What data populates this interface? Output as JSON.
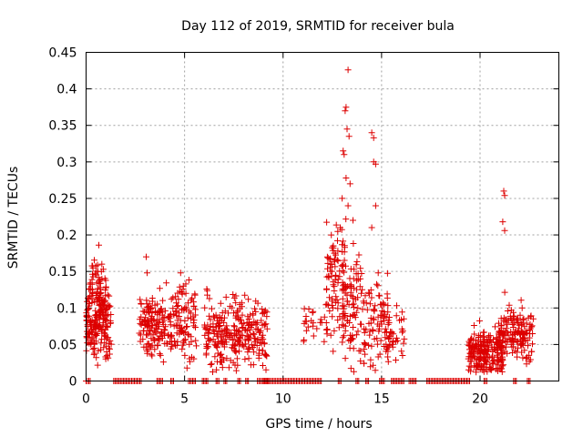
{
  "chart_data": {
    "type": "scatter",
    "title": "Day 112 of 2019, SRMTID for receiver bula",
    "xlabel": "GPS time / hours",
    "ylabel": "SRMTID / TECUs",
    "xlim": [
      0,
      24
    ],
    "ylim": [
      0,
      0.45
    ],
    "xticks": [
      0,
      5,
      10,
      15,
      20
    ],
    "xtick_labels": [
      "0",
      "5",
      "10",
      "15",
      "20"
    ],
    "yticks": [
      0,
      0.05,
      0.1,
      0.15,
      0.2,
      0.25,
      0.3,
      0.35,
      0.4,
      0.45
    ],
    "ytick_labels": [
      "0",
      "0.05",
      "0.1",
      "0.15",
      "0.2",
      "0.25",
      "0.3",
      "0.35",
      "0.4",
      "0.45"
    ],
    "grid": true,
    "marker": "+",
    "marker_color": "#dd0000",
    "clusters": [
      {
        "x": [
          0.0,
          1.3
        ],
        "y_center": 0.085,
        "y_spread": 0.04,
        "count": 200
      },
      {
        "x": [
          0.3,
          1.0
        ],
        "y_center": 0.12,
        "y_spread": 0.04,
        "count": 40
      },
      {
        "x": [
          2.7,
          4.6
        ],
        "y_center": 0.075,
        "y_spread": 0.035,
        "count": 170
      },
      {
        "x": [
          4.6,
          5.6
        ],
        "y_center": 0.085,
        "y_spread": 0.04,
        "count": 80
      },
      {
        "x": [
          6.0,
          9.2
        ],
        "y_center": 0.065,
        "y_spread": 0.035,
        "count": 280
      },
      {
        "x": [
          11.0,
          12.3
        ],
        "y_center": 0.075,
        "y_spread": 0.02,
        "count": 25
      },
      {
        "x": [
          12.2,
          13.2
        ],
        "y_center": 0.13,
        "y_spread": 0.06,
        "count": 90
      },
      {
        "x": [
          13.0,
          14.0
        ],
        "y_center": 0.1,
        "y_spread": 0.06,
        "count": 90
      },
      {
        "x": [
          14.0,
          15.4
        ],
        "y_center": 0.08,
        "y_spread": 0.05,
        "count": 90
      },
      {
        "x": [
          15.2,
          16.2
        ],
        "y_center": 0.065,
        "y_spread": 0.03,
        "count": 40
      },
      {
        "x": [
          19.4,
          21.2
        ],
        "y_center": 0.04,
        "y_spread": 0.025,
        "count": 220
      },
      {
        "x": [
          21.0,
          22.7
        ],
        "y_center": 0.065,
        "y_spread": 0.03,
        "count": 150
      }
    ],
    "peaks": [
      {
        "x": 0.35,
        "y": 0.155
      },
      {
        "x": 0.6,
        "y": 0.15
      },
      {
        "x": 0.8,
        "y": 0.16
      },
      {
        "x": 3.05,
        "y": 0.17
      },
      {
        "x": 3.1,
        "y": 0.148
      },
      {
        "x": 4.8,
        "y": 0.148
      },
      {
        "x": 12.45,
        "y": 0.2
      },
      {
        "x": 12.55,
        "y": 0.185
      },
      {
        "x": 12.6,
        "y": 0.175
      },
      {
        "x": 12.9,
        "y": 0.21
      },
      {
        "x": 13.0,
        "y": 0.25
      },
      {
        "x": 13.05,
        "y": 0.315
      },
      {
        "x": 13.1,
        "y": 0.31
      },
      {
        "x": 13.15,
        "y": 0.37
      },
      {
        "x": 13.2,
        "y": 0.375
      },
      {
        "x": 13.2,
        "y": 0.278
      },
      {
        "x": 13.25,
        "y": 0.345
      },
      {
        "x": 13.3,
        "y": 0.426
      },
      {
        "x": 13.35,
        "y": 0.335
      },
      {
        "x": 13.3,
        "y": 0.24
      },
      {
        "x": 13.4,
        "y": 0.27
      },
      {
        "x": 13.55,
        "y": 0.22
      },
      {
        "x": 14.5,
        "y": 0.34
      },
      {
        "x": 14.6,
        "y": 0.333
      },
      {
        "x": 14.6,
        "y": 0.3
      },
      {
        "x": 14.7,
        "y": 0.297
      },
      {
        "x": 14.7,
        "y": 0.24
      },
      {
        "x": 14.5,
        "y": 0.21
      },
      {
        "x": 21.2,
        "y": 0.26
      },
      {
        "x": 21.25,
        "y": 0.254
      },
      {
        "x": 21.15,
        "y": 0.218
      },
      {
        "x": 21.25,
        "y": 0.206
      }
    ],
    "zero_ranges": [
      [
        0.0,
        0.25
      ],
      [
        1.4,
        2.8
      ],
      [
        3.6,
        3.9
      ],
      [
        4.3,
        4.5
      ],
      [
        5.2,
        5.6
      ],
      [
        5.9,
        6.2
      ],
      [
        6.6,
        6.8
      ],
      [
        7.0,
        7.2
      ],
      [
        7.7,
        7.9
      ],
      [
        8.1,
        8.3
      ],
      [
        8.7,
        9.3
      ],
      [
        9.0,
        12.0
      ],
      [
        12.8,
        13.0
      ],
      [
        13.7,
        13.9
      ],
      [
        14.2,
        14.4
      ],
      [
        14.9,
        15.0
      ],
      [
        15.0,
        15.2
      ],
      [
        15.5,
        16.2
      ],
      [
        16.4,
        16.8
      ],
      [
        17.3,
        19.5
      ],
      [
        20.2,
        20.4
      ],
      [
        21.7,
        21.9
      ],
      [
        22.4,
        22.6
      ]
    ]
  }
}
